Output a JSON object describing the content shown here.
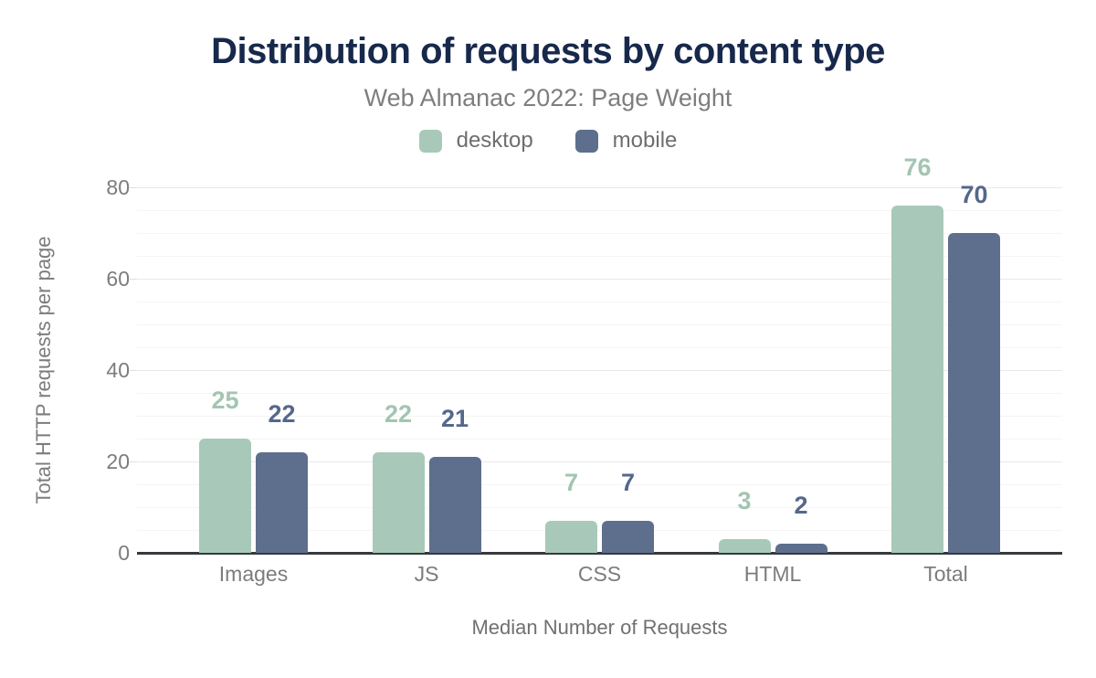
{
  "chart_data": {
    "type": "bar",
    "title": "Distribution of requests by content type",
    "subtitle": "Web Almanac 2022: Page Weight",
    "categories": [
      "Images",
      "JS",
      "CSS",
      "HTML",
      "Total"
    ],
    "series": [
      {
        "name": "desktop",
        "color": "#a8c9b9",
        "label_color": "#a2c5b1",
        "values": [
          25,
          22,
          7,
          3,
          76
        ]
      },
      {
        "name": "mobile",
        "color": "#5e6f8d",
        "label_color": "#55678a",
        "values": [
          22,
          21,
          7,
          2,
          70
        ]
      }
    ],
    "xlabel": "Median Number of Requests",
    "ylabel": "Total HTTP requests per page",
    "ylim": [
      0,
      80
    ],
    "yticks": [
      0,
      20,
      40,
      60,
      80
    ],
    "minor_grid_step": 5,
    "major_grid_step": 20,
    "grid": true,
    "legend_position": "top"
  },
  "colors": {
    "title": "#17294b",
    "subtitle": "#7e7e7e",
    "axis_text": "#7c7c7c",
    "axis_line": "#36393e",
    "grid_major": "#e9e9e9",
    "grid_minor": "#f5f5f5",
    "background": "#ffffff"
  }
}
